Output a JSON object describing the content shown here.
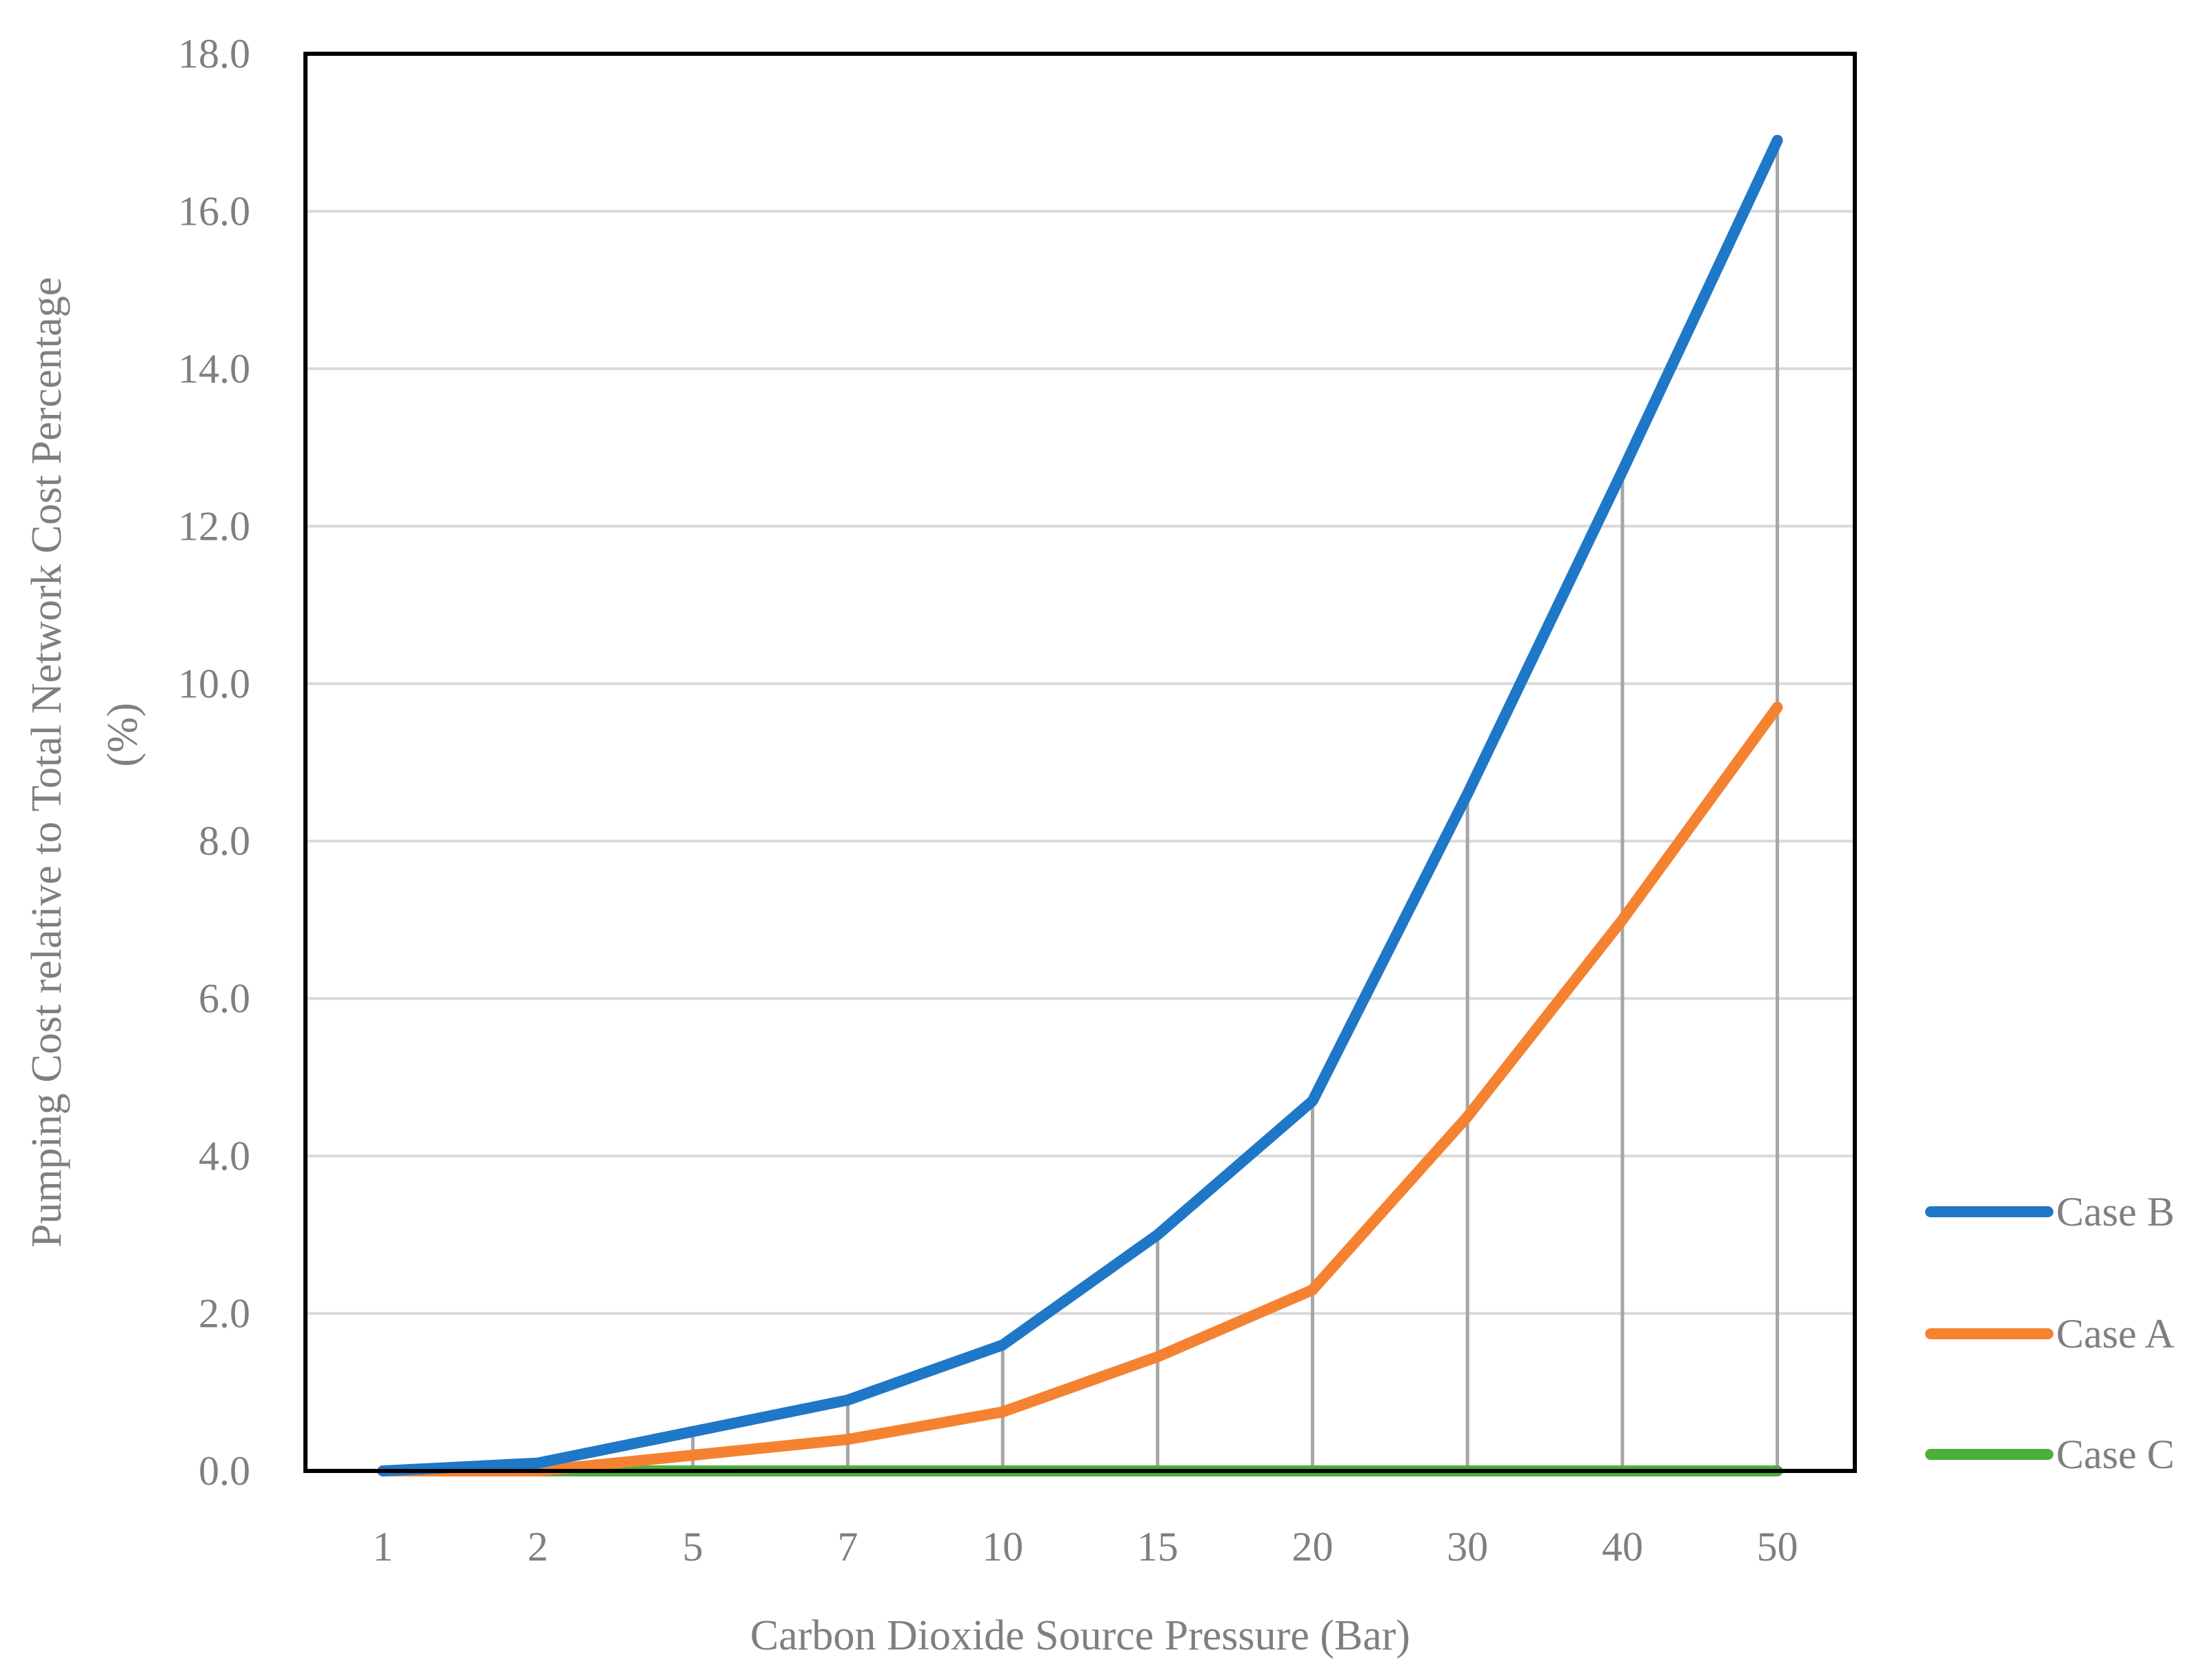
{
  "chart_data": {
    "type": "line",
    "title": "",
    "xlabel": "Carbon Dioxide Source Pressure  (Bar)",
    "ylabel_line1": "Pumping  Cost relative to Total Network Cost Percentage",
    "ylabel_line2": "(%)",
    "categories": [
      "1",
      "2",
      "5",
      "7",
      "10",
      "15",
      "20",
      "30",
      "40",
      "50"
    ],
    "y_ticks": [
      "0.0",
      "2.0",
      "4.0",
      "6.0",
      "8.0",
      "10.0",
      "12.0",
      "14.0",
      "16.0",
      "18.0"
    ],
    "ylim": [
      0,
      18
    ],
    "grid": true,
    "legend_position": "right",
    "drop_lines": true,
    "series": [
      {
        "name": "Case B",
        "color": "#1f77c8",
        "values": [
          0.0,
          0.1,
          0.5,
          0.9,
          1.6,
          3.0,
          4.7,
          8.6,
          12.7,
          16.9
        ]
      },
      {
        "name": "Case A",
        "color": "#f58231",
        "values": [
          0.0,
          0.0,
          0.2,
          0.4,
          0.75,
          1.45,
          2.3,
          4.5,
          7.0,
          9.7
        ]
      },
      {
        "name": "Case C",
        "color": "#4caf3a",
        "values": [
          0.0,
          0.0,
          0.0,
          0.0,
          0.0,
          0.0,
          0.0,
          0.0,
          0.0,
          0.0
        ]
      }
    ]
  }
}
